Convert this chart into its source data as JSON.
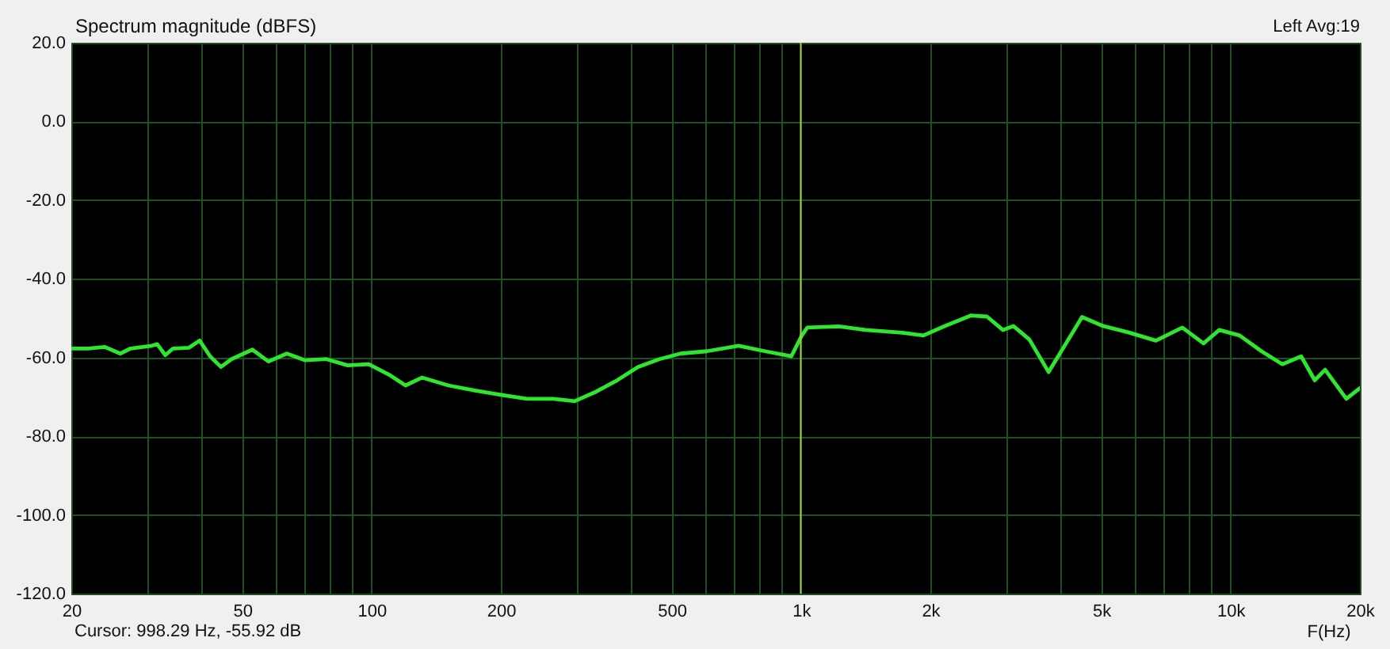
{
  "chart_data": {
    "type": "line",
    "ylabel": "Spectrum magnitude (dBFS)",
    "xlabel": "F(Hz)",
    "annotations": [
      "Left Avg:19",
      "Cursor: 998.29 Hz, -55.92 dB"
    ],
    "x": [
      20,
      21.9,
      23.9,
      26,
      27.5,
      30.8,
      31.7,
      33.1,
      34.5,
      37.6,
      39.8,
      42.1,
      44.6,
      47.2,
      52.8,
      57.5,
      63.5,
      70.1,
      78.5,
      88,
      98.5,
      110,
      120,
      131,
      151,
      174,
      200,
      230,
      265,
      297,
      333,
      373,
      417,
      468,
      524,
      604,
      715,
      824,
      949,
      1004,
      1034,
      1225,
      1412,
      1721,
      1926,
      2160,
      2490,
      2710,
      2950,
      3120,
      3400,
      3770,
      4140,
      4510,
      5050,
      5820,
      6700,
      7720,
      8650,
      9410,
      10500,
      11800,
      13200,
      14600,
      15700,
      16600,
      18600,
      20000
    ],
    "series": [
      {
        "color": "#2ee62e",
        "values": [
          -57.7,
          -57.7,
          -57.3,
          -59.0,
          -57.7,
          -57.0,
          -56.6,
          -59.4,
          -57.7,
          -57.5,
          -55.7,
          -59.7,
          -62.4,
          -60.4,
          -58.0,
          -61.0,
          -59.0,
          -60.7,
          -60.4,
          -62.0,
          -61.7,
          -64.4,
          -67.1,
          -65.1,
          -67.1,
          -68.4,
          -69.5,
          -70.5,
          -70.5,
          -71.1,
          -68.7,
          -65.8,
          -62.4,
          -60.4,
          -59.0,
          -58.4,
          -57.0,
          -58.4,
          -59.7,
          -54.4,
          -52.4,
          -52.1,
          -53.0,
          -53.7,
          -54.4,
          -52.0,
          -49.3,
          -49.6,
          -53.0,
          -52.0,
          -55.4,
          -63.7,
          -56.4,
          -49.7,
          -52.0,
          -53.7,
          -55.7,
          -52.4,
          -56.4,
          -53.0,
          -54.4,
          -58.4,
          -61.7,
          -59.7,
          -65.8,
          -63.1,
          -70.5,
          -67.8
        ]
      }
    ],
    "log": "x",
    "xlim": [
      20,
      20000
    ],
    "ylim": [
      -120,
      20
    ],
    "xticks": [
      20,
      {
        "value": 30,
        "label": null
      },
      {
        "value": 40,
        "label": null
      },
      50,
      {
        "value": 60,
        "label": null
      },
      {
        "value": 70,
        "label": null
      },
      {
        "value": 80,
        "label": null
      },
      {
        "value": 90,
        "label": null
      },
      100,
      200,
      {
        "value": 300,
        "label": null
      },
      {
        "value": 400,
        "label": null
      },
      500,
      {
        "value": 600,
        "label": null
      },
      {
        "value": 700,
        "label": null
      },
      {
        "value": 800,
        "label": null
      },
      {
        "value": 900,
        "label": null
      },
      {
        "value": 1000,
        "label": "1k"
      },
      {
        "value": 2000,
        "label": "2k"
      },
      {
        "value": 3000,
        "label": null
      },
      {
        "value": 4000,
        "label": null
      },
      {
        "value": 5000,
        "label": "5k"
      },
      {
        "value": 6000,
        "label": null
      },
      {
        "value": 7000,
        "label": null
      },
      {
        "value": 8000,
        "label": null
      },
      {
        "value": 9000,
        "label": null
      },
      {
        "value": 10000,
        "label": "10k"
      },
      {
        "value": 20000,
        "label": "20k"
      }
    ],
    "yticks": [
      {
        "value": -120,
        "label": "-120.0"
      },
      {
        "value": -100,
        "label": "-100.0"
      },
      {
        "value": -80,
        "label": "-80.0"
      },
      {
        "value": -60,
        "label": "-60.0"
      },
      {
        "value": -40,
        "label": "-40.0"
      },
      {
        "value": -20,
        "label": "-20.0"
      },
      {
        "value": 0,
        "label": "0.0"
      },
      {
        "value": 20,
        "label": "20.0"
      }
    ],
    "grid": true,
    "ref_lines": [
      {
        "axis": "x",
        "value": 998.29,
        "color": "#a6d23c"
      }
    ],
    "marker": "none",
    "line_style": "solid"
  }
}
